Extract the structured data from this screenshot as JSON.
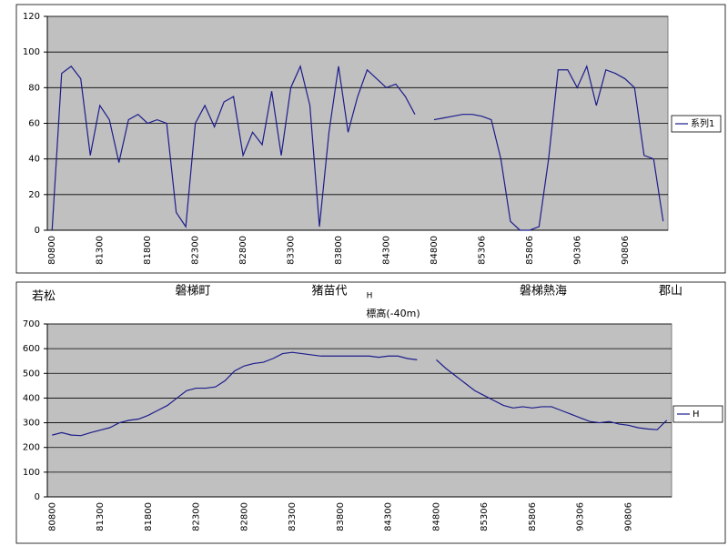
{
  "chart_data": [
    {
      "type": "line",
      "categories": [
        "80800",
        null,
        null,
        null,
        null,
        "81300",
        null,
        null,
        null,
        null,
        "81800",
        null,
        null,
        null,
        null,
        "82300",
        null,
        null,
        null,
        null,
        "82800",
        null,
        null,
        null,
        null,
        "83300",
        null,
        null,
        null,
        null,
        "83800",
        null,
        null,
        null,
        null,
        "84300",
        null,
        null,
        null,
        null,
        "84800",
        null,
        null,
        null,
        null,
        "85306",
        null,
        null,
        null,
        null,
        "85806",
        null,
        null,
        null,
        null,
        "90306",
        null,
        null,
        null,
        null,
        "90806",
        null,
        null,
        null,
        null
      ],
      "series": [
        {
          "name": "系列1",
          "color": "#1c1c8c",
          "values": [
            0,
            88,
            92,
            85,
            42,
            70,
            62,
            38,
            62,
            65,
            60,
            62,
            60,
            10,
            2,
            60,
            70,
            58,
            72,
            75,
            42,
            55,
            48,
            78,
            42,
            80,
            92,
            70,
            2,
            55,
            92,
            55,
            75,
            90,
            85,
            80,
            82,
            75,
            65,
            null,
            62,
            63,
            64,
            65,
            65,
            64,
            62,
            40,
            5,
            0,
            0,
            2,
            40,
            90,
            90,
            80,
            92,
            70,
            90,
            88,
            85,
            80,
            42,
            40,
            5
          ]
        }
      ],
      "ylim": [
        0,
        120
      ],
      "yticks": [
        0,
        20,
        40,
        60,
        80,
        100,
        120
      ],
      "grid": true,
      "legend": "right"
    },
    {
      "type": "line",
      "title": "標高(-40m)",
      "annotations": [
        "若松",
        "磐梯町",
        "猪苗代",
        "H",
        "磐梯熱海",
        "郡山"
      ],
      "categories": [
        "80800",
        null,
        null,
        null,
        null,
        "81300",
        null,
        null,
        null,
        null,
        "81800",
        null,
        null,
        null,
        null,
        "82300",
        null,
        null,
        null,
        null,
        "82800",
        null,
        null,
        null,
        null,
        "83300",
        null,
        null,
        null,
        null,
        "83800",
        null,
        null,
        null,
        null,
        "84300",
        null,
        null,
        null,
        null,
        "84800",
        null,
        null,
        null,
        null,
        "85306",
        null,
        null,
        null,
        null,
        "85806",
        null,
        null,
        null,
        null,
        "90306",
        null,
        null,
        null,
        null,
        "90806",
        null,
        null,
        null,
        null
      ],
      "series": [
        {
          "name": "H",
          "color": "#1c1c8c",
          "values": [
            250,
            260,
            250,
            248,
            260,
            270,
            280,
            300,
            310,
            315,
            330,
            350,
            370,
            400,
            430,
            440,
            440,
            445,
            470,
            510,
            530,
            540,
            545,
            560,
            580,
            585,
            580,
            575,
            570,
            570,
            570,
            570,
            570,
            570,
            565,
            570,
            570,
            560,
            555,
            null,
            555,
            520,
            490,
            460,
            430,
            410,
            390,
            370,
            360,
            365,
            360,
            365,
            365,
            350,
            335,
            320,
            305,
            300,
            305,
            295,
            290,
            280,
            275,
            272,
            310
          ]
        }
      ],
      "ylim": [
        0,
        700
      ],
      "yticks": [
        0,
        100,
        200,
        300,
        400,
        500,
        600,
        700
      ],
      "grid": true,
      "legend": "right"
    }
  ]
}
